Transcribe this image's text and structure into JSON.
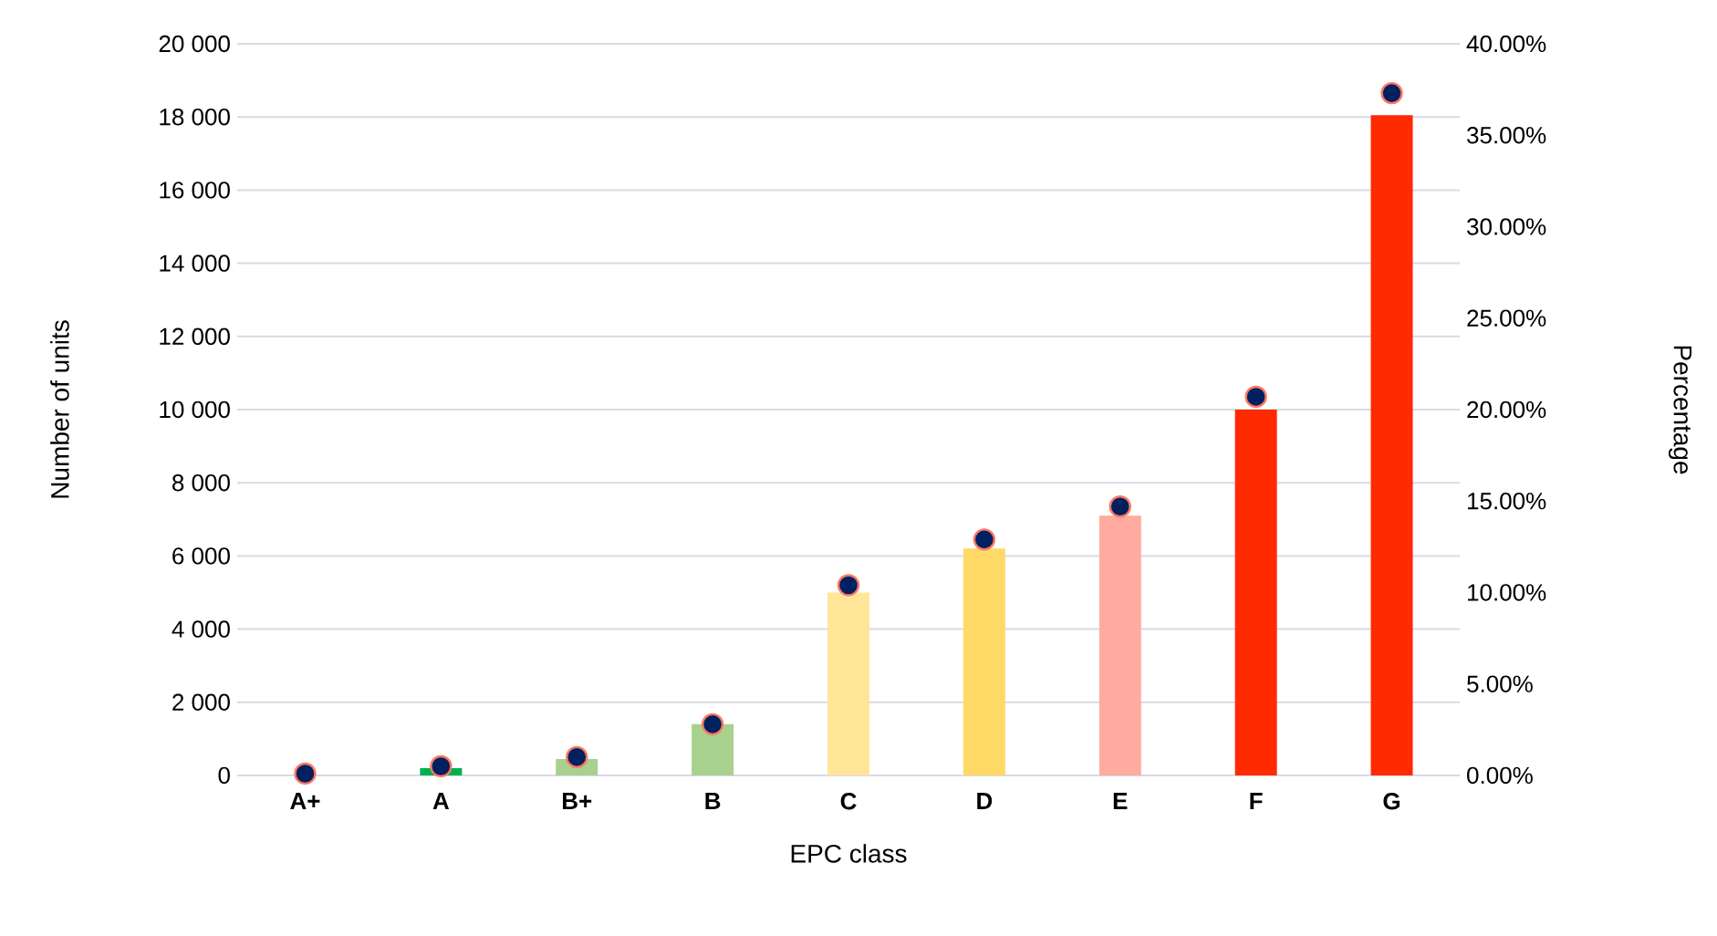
{
  "chart_data": {
    "type": "bar",
    "xlabel": "EPC class",
    "ylabel": "Number of units",
    "y2label": "Percentage",
    "grid": "y",
    "categories": [
      "A+",
      "A",
      "B+",
      "B",
      "C",
      "D",
      "E",
      "F",
      "G"
    ],
    "ylim": [
      0,
      20000
    ],
    "yticks": [
      {
        "value": 0,
        "label": "0"
      },
      {
        "value": 2000,
        "label": "2 000"
      },
      {
        "value": 4000,
        "label": "4 000"
      },
      {
        "value": 6000,
        "label": "6 000"
      },
      {
        "value": 8000,
        "label": "8 000"
      },
      {
        "value": 10000,
        "label": "10 000"
      },
      {
        "value": 12000,
        "label": "12 000"
      },
      {
        "value": 14000,
        "label": "14 000"
      },
      {
        "value": 16000,
        "label": "16 000"
      },
      {
        "value": 18000,
        "label": "18 000"
      },
      {
        "value": 20000,
        "label": "20 000"
      }
    ],
    "y2lim": [
      0,
      40
    ],
    "y2ticks": [
      {
        "value": 0,
        "label": "0.00%"
      },
      {
        "value": 5,
        "label": "5.00%"
      },
      {
        "value": 10,
        "label": "10.00%"
      },
      {
        "value": 15,
        "label": "15.00%"
      },
      {
        "value": 20,
        "label": "20.00%"
      },
      {
        "value": 25,
        "label": "25.00%"
      },
      {
        "value": 30,
        "label": "30.00%"
      },
      {
        "value": 35,
        "label": "35.00%"
      },
      {
        "value": 40,
        "label": "40.00%"
      }
    ],
    "series": [
      {
        "values": [
          0,
          200,
          450,
          1400,
          5000,
          6200,
          7100,
          10000,
          18050
        ],
        "colors": [
          "#00b050",
          "#00b050",
          "#a9d18e",
          "#a9d18e",
          "#ffe699",
          "#ffd966",
          "#ffab9f",
          "#ff2a00",
          "#ff2a00"
        ]
      },
      {
        "type": "scatter",
        "axis": "y2",
        "marker": "circle",
        "color": "#002060",
        "values": [
          0.1,
          0.5,
          1.0,
          2.8,
          10.4,
          12.9,
          14.7,
          20.7,
          37.3
        ]
      }
    ]
  }
}
